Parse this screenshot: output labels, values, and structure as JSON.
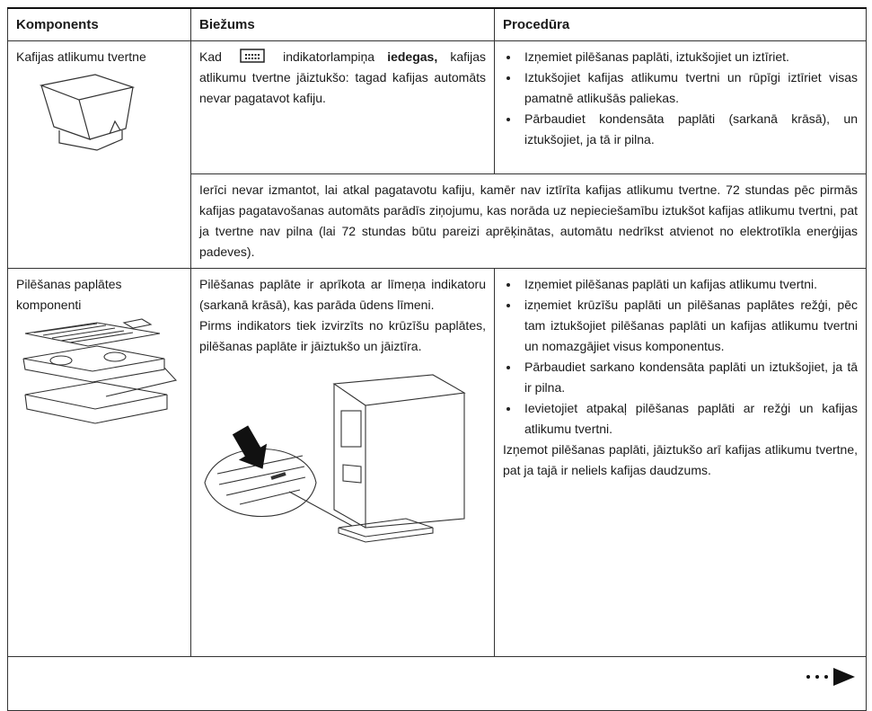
{
  "header": [
    "Komponents",
    "Biežums",
    "Procedūra"
  ],
  "rows": [
    {
      "component": "Kafijas atlikumu tvertne",
      "frequency": {
        "before_icon": "Kad",
        "after_icon": "indikatorlampiņa",
        "bold": "iedegas,",
        "rest": "kafijas atlikumu tvertne jāiztukšo: tagad kafijas automāts nevar pagatavot kafiju."
      },
      "procedure": [
        "Izņemiet pilēšanas paplāti, iztukšojiet un iztīriet.",
        "Iztukšojiet kafijas atlikumu tvertni un rūpīgi iztīriet visas pamatnē atlikušās paliekas.",
        "Pārbaudiet kondensāta paplāti (sarkanā krāsā), un iztukšojiet, ja tā ir pilna."
      ],
      "note": "Ierīci nevar izmantot, lai atkal pagatavotu kafiju, kamēr nav iztīrīta kafijas atlikumu tvertne. 72 stundas pēc pirmās kafijas pagatavošanas automāts parādīs ziņojumu, kas norāda uz nepieciešamību iztukšot kafijas atlikumu tvertni, pat ja tvertne nav pilna (lai 72 stundas būtu pareizi aprēķinātas, automātu nedrīkst atvienot no elektrotīkla enerģijas padeves)."
    },
    {
      "component": "Pilēšanas paplātes komponenti",
      "frequency": [
        "Pilēšanas paplāte ir aprīkota ar līmeņa indikatoru (sarkanā krāsā), kas parāda ūdens līmeni.",
        "Pirms indikators tiek izvirzīts no krūzīšu paplātes, pilēšanas paplāte ir jāiztukšo un jāiztīra."
      ],
      "procedure": [
        "Izņemiet pilēšanas paplāti un kafijas atlikumu tvertni.",
        "izņemiet krūzīšu paplāti un pilēšanas paplātes režģi, pēc tam iztukšojiet pilēšanas paplāti un kafijas atlikumu tvertni un nomazgājiet visus komponentus.",
        "Pārbaudiet sarkano kondensāta paplāti un iztukšojiet, ja tā ir pilna.",
        "Ievietojiet atpakaļ pilēšanas paplāti ar režģi un kafijas atlikumu tvertni."
      ],
      "procedure_note": "Izņemot pilēšanas paplāti, jāiztukšo arī kafijas atlikumu tvertne, pat ja tajā ir neliels kafijas daudzums."
    }
  ]
}
